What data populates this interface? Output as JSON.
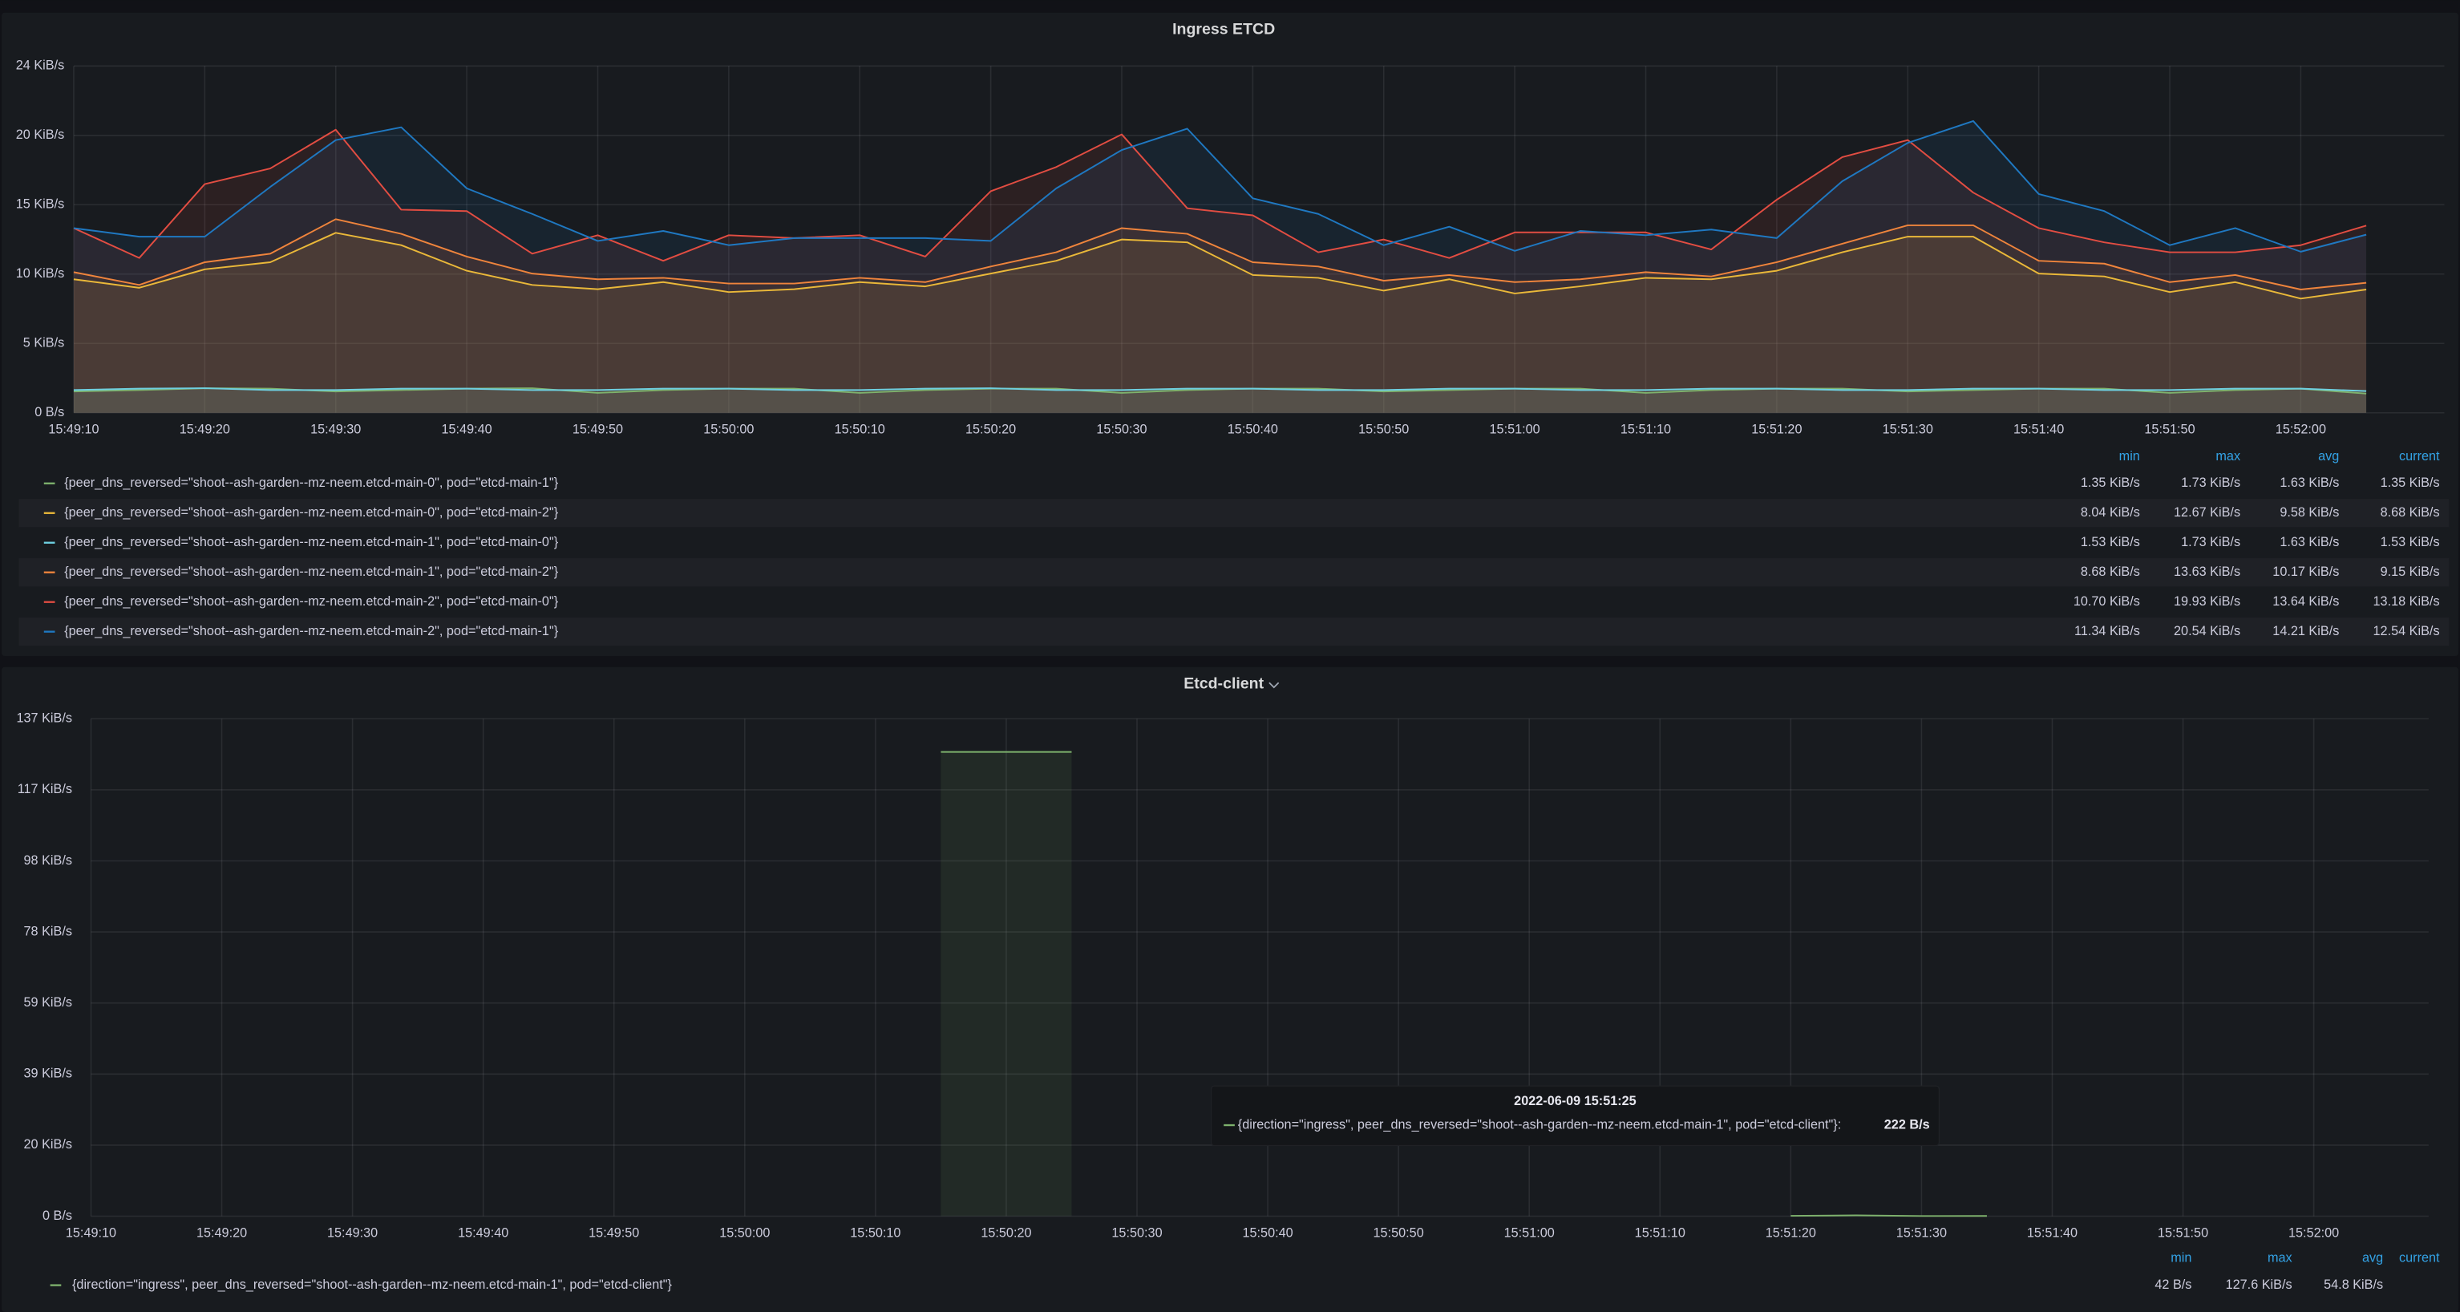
{
  "chart_data": [
    {
      "type": "line",
      "title": "Ingress ETCD",
      "grid": true,
      "categories": [
        "15:49:10",
        null,
        "15:49:20",
        null,
        "15:49:30",
        null,
        "15:49:40",
        null,
        "15:49:50",
        null,
        "15:50:00",
        null,
        "15:50:10",
        null,
        "15:50:20",
        null,
        "15:50:30",
        null,
        "15:50:40",
        null,
        "15:50:50",
        null,
        "15:51:00",
        null,
        "15:51:10",
        null,
        "15:51:20",
        null,
        "15:51:30",
        null,
        "15:51:40",
        null,
        "15:51:50",
        null,
        "15:52:00",
        null
      ],
      "ylim": [
        0,
        24.414
      ],
      "yticks": [
        {
          "value": 0,
          "label": "0 B/s"
        },
        {
          "value": 4.883,
          "label": "5 KiB/s"
        },
        {
          "value": 9.766,
          "label": "10 KiB/s"
        },
        {
          "value": 14.648,
          "label": "15 KiB/s"
        },
        {
          "value": 19.531,
          "label": "20 KiB/s"
        },
        {
          "value": 24.414,
          "label": "24 KiB/s"
        }
      ],
      "legend_columns": [
        "min",
        "max",
        "avg",
        "current"
      ],
      "series": [
        {
          "name": "{peer_dns_reversed=\"shoot--ash-garden--mz-neem.etcd-main-0\", pod=\"etcd-main-1\"}",
          "color": "#7eb26d",
          "values": [
            1.5,
            1.6,
            1.73,
            1.7,
            1.5,
            1.6,
            1.7,
            1.73,
            1.4,
            1.6,
            1.7,
            1.7,
            1.4,
            1.6,
            1.7,
            1.7,
            1.4,
            1.6,
            1.7,
            1.7,
            1.5,
            1.6,
            1.7,
            1.7,
            1.4,
            1.6,
            1.7,
            1.7,
            1.5,
            1.6,
            1.7,
            1.7,
            1.4,
            1.6,
            1.7,
            1.35
          ],
          "stats": [
            "1.35 KiB/s",
            "1.73 KiB/s",
            "1.63 KiB/s",
            "1.35 KiB/s"
          ]
        },
        {
          "name": "{peer_dns_reversed=\"shoot--ash-garden--mz-neem.etcd-main-0\", pod=\"etcd-main-2\"}",
          "color": "#eab839",
          "values": [
            9.4,
            8.8,
            10.1,
            10.6,
            12.67,
            11.8,
            10.0,
            9.0,
            8.7,
            9.2,
            8.5,
            8.7,
            9.2,
            8.9,
            9.8,
            10.7,
            12.2,
            12.0,
            9.7,
            9.5,
            8.6,
            9.4,
            8.4,
            8.9,
            9.5,
            9.4,
            10.0,
            11.3,
            12.4,
            12.4,
            9.8,
            9.6,
            8.5,
            9.2,
            8.04,
            8.68
          ],
          "stats": [
            "8.04 KiB/s",
            "12.67 KiB/s",
            "9.58 KiB/s",
            "8.68 KiB/s"
          ]
        },
        {
          "name": "{peer_dns_reversed=\"shoot--ash-garden--mz-neem.etcd-main-1\", pod=\"etcd-main-0\"}",
          "color": "#6ed0e0",
          "values": [
            1.6,
            1.7,
            1.73,
            1.6,
            1.6,
            1.7,
            1.7,
            1.6,
            1.6,
            1.7,
            1.7,
            1.6,
            1.6,
            1.7,
            1.73,
            1.6,
            1.6,
            1.7,
            1.7,
            1.6,
            1.6,
            1.7,
            1.7,
            1.6,
            1.6,
            1.7,
            1.7,
            1.6,
            1.6,
            1.7,
            1.7,
            1.6,
            1.6,
            1.7,
            1.7,
            1.53
          ],
          "stats": [
            "1.53 KiB/s",
            "1.73 KiB/s",
            "1.63 KiB/s",
            "1.53 KiB/s"
          ]
        },
        {
          "name": "{peer_dns_reversed=\"shoot--ash-garden--mz-neem.etcd-main-1\", pod=\"etcd-main-2\"}",
          "color": "#ef843c",
          "values": [
            9.9,
            9.0,
            10.6,
            11.2,
            13.63,
            12.6,
            11.0,
            9.8,
            9.4,
            9.5,
            9.1,
            9.1,
            9.5,
            9.2,
            10.3,
            11.3,
            13.0,
            12.6,
            10.6,
            10.3,
            9.3,
            9.7,
            9.2,
            9.4,
            9.9,
            9.6,
            10.6,
            11.9,
            13.2,
            13.2,
            10.7,
            10.5,
            9.2,
            9.7,
            8.68,
            9.15
          ],
          "stats": [
            "8.68 KiB/s",
            "13.63 KiB/s",
            "10.17 KiB/s",
            "9.15 KiB/s"
          ]
        },
        {
          "name": "{peer_dns_reversed=\"shoot--ash-garden--mz-neem.etcd-main-2\", pod=\"etcd-main-0\"}",
          "color": "#e24d42",
          "values": [
            13.0,
            10.9,
            16.1,
            17.2,
            19.93,
            14.3,
            14.2,
            11.2,
            12.5,
            10.7,
            12.5,
            12.3,
            12.5,
            11.0,
            15.6,
            17.3,
            19.6,
            14.4,
            13.9,
            11.3,
            12.2,
            10.9,
            12.7,
            12.7,
            12.7,
            11.5,
            15.0,
            18.0,
            19.2,
            15.5,
            13.0,
            12.0,
            11.3,
            11.3,
            11.8,
            13.18
          ],
          "stats": [
            "10.70 KiB/s",
            "19.93 KiB/s",
            "13.64 KiB/s",
            "13.18 KiB/s"
          ]
        },
        {
          "name": "{peer_dns_reversed=\"shoot--ash-garden--mz-neem.etcd-main-2\", pod=\"etcd-main-1\"}",
          "color": "#1f78c1",
          "values": [
            13.0,
            12.4,
            12.4,
            15.9,
            19.2,
            20.1,
            15.8,
            14.0,
            12.1,
            12.8,
            11.8,
            12.3,
            12.3,
            12.3,
            12.1,
            15.8,
            18.5,
            20.0,
            15.1,
            14.0,
            11.8,
            13.1,
            11.4,
            12.8,
            12.5,
            12.9,
            12.3,
            16.3,
            19.0,
            20.54,
            15.4,
            14.2,
            11.8,
            13.0,
            11.34,
            12.54
          ],
          "stats": [
            "11.34 KiB/s",
            "20.54 KiB/s",
            "14.21 KiB/s",
            "12.54 KiB/s"
          ]
        }
      ]
    },
    {
      "type": "line",
      "title": "Etcd-client",
      "grid": true,
      "categories": [
        "15:49:10",
        null,
        "15:49:20",
        null,
        "15:49:30",
        null,
        "15:49:40",
        null,
        "15:49:50",
        null,
        "15:50:00",
        null,
        "15:50:10",
        null,
        "15:50:20",
        null,
        "15:50:30",
        null,
        "15:50:40",
        null,
        "15:50:50",
        null,
        "15:51:00",
        null,
        "15:51:10",
        null,
        "15:51:20",
        null,
        "15:51:30",
        null,
        "15:51:40",
        null,
        "15:51:50",
        null,
        "15:52:00",
        null
      ],
      "ylim": [
        0,
        136.719
      ],
      "yticks": [
        {
          "value": 0,
          "label": "0 B/s"
        },
        {
          "value": 19.531,
          "label": "20 KiB/s"
        },
        {
          "value": 39.063,
          "label": "39 KiB/s"
        },
        {
          "value": 58.594,
          "label": "59 KiB/s"
        },
        {
          "value": 78.125,
          "label": "78 KiB/s"
        },
        {
          "value": 97.656,
          "label": "98 KiB/s"
        },
        {
          "value": 117.188,
          "label": "117 KiB/s"
        },
        {
          "value": 136.719,
          "label": "137 KiB/s"
        }
      ],
      "legend_columns": [
        "min",
        "max",
        "avg",
        "current"
      ],
      "series": [
        {
          "name": "{direction=\"ingress\", peer_dns_reversed=\"shoot--ash-garden--mz-neem.etcd-main-1\", pod=\"etcd-client\"}",
          "color": "#7eb26d",
          "values": [
            null,
            null,
            null,
            null,
            null,
            null,
            null,
            null,
            null,
            null,
            null,
            null,
            null,
            127.6,
            127.6,
            127.6,
            null,
            null,
            null,
            null,
            null,
            null,
            null,
            null,
            null,
            null,
            0.1,
            0.217,
            0.041,
            0.06,
            null,
            null,
            null,
            null,
            null,
            null
          ],
          "stats": [
            "42 B/s",
            "127.6 KiB/s",
            "54.8 KiB/s",
            null
          ]
        }
      ],
      "tooltip": {
        "time": "2022-06-09 15:51:25",
        "series": "{direction=\"ingress\", peer_dns_reversed=\"shoot--ash-garden--mz-neem.etcd-main-1\", pod=\"etcd-client\"}:",
        "value": "222 B/s"
      }
    }
  ]
}
